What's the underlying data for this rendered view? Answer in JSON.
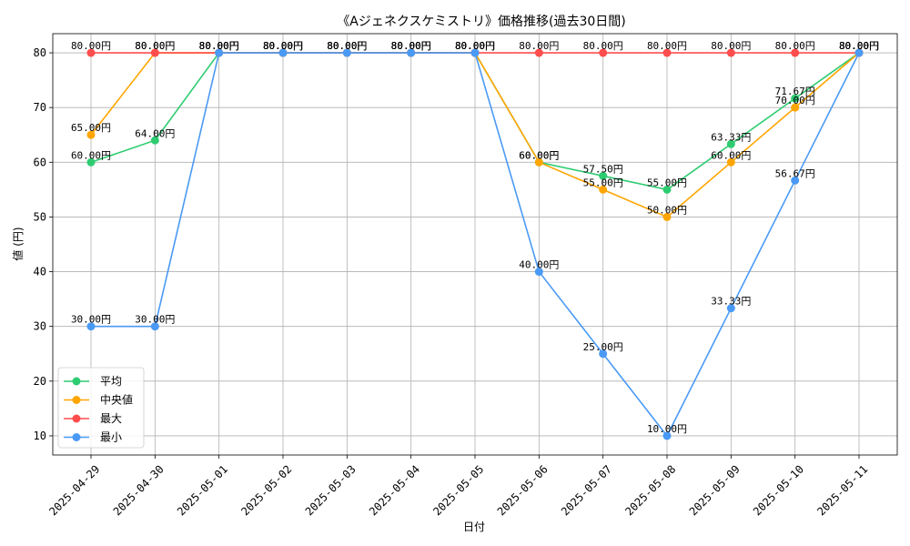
{
  "chart_data": {
    "type": "line",
    "title": "《Aジェネクスケミストリ》価格推移(過去30日間)",
    "xlabel": "日付",
    "ylabel": "値 (円)",
    "categories": [
      "2025-04-29",
      "2025-04-30",
      "2025-05-01",
      "2025-05-02",
      "2025-05-03",
      "2025-05-04",
      "2025-05-05",
      "2025-05-06",
      "2025-05-07",
      "2025-05-08",
      "2025-05-09",
      "2025-05-10",
      "2025-05-11"
    ],
    "ylim": [
      6.5,
      83.5
    ],
    "yticks": [
      10,
      20,
      30,
      40,
      50,
      60,
      70,
      80
    ],
    "grid": true,
    "legend_position": "lower-left",
    "value_suffix": "円",
    "series": [
      {
        "name": "平均",
        "color": "#2ecc71",
        "values": [
          60.0,
          64.0,
          80.0,
          80.0,
          80.0,
          80.0,
          80.0,
          60.0,
          57.5,
          55.0,
          63.33,
          71.67,
          80.0
        ]
      },
      {
        "name": "中央値",
        "color": "#ffa500",
        "values": [
          65.0,
          80.0,
          80.0,
          80.0,
          80.0,
          80.0,
          80.0,
          60.0,
          55.0,
          50.0,
          60.0,
          70.0,
          80.0
        ]
      },
      {
        "name": "最大",
        "color": "#ff4d4d",
        "values": [
          80.0,
          80.0,
          80.0,
          80.0,
          80.0,
          80.0,
          80.0,
          80.0,
          80.0,
          80.0,
          80.0,
          80.0,
          80.0
        ]
      },
      {
        "name": "最小",
        "color": "#4a9af5",
        "values": [
          30.0,
          30.0,
          80.0,
          80.0,
          80.0,
          80.0,
          80.0,
          40.0,
          25.0,
          10.0,
          33.33,
          56.67,
          80.0
        ]
      }
    ]
  }
}
